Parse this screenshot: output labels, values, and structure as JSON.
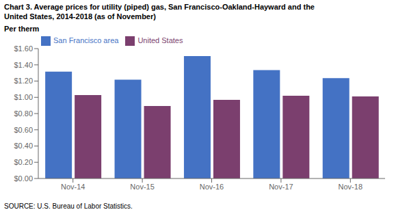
{
  "chart_data": {
    "type": "bar",
    "title": "Chart 3. Average prices for utility (piped) gas, San Francisco-Oakland-Hayward and the",
    "subtitle": "United States, 2014-2018  (as of November)",
    "ylabel": "Per therm",
    "annotations": [
      "SOURCE: U.S. Bureau of Labor Statistics."
    ],
    "categories": [
      "Nov-14",
      "Nov-15",
      "Nov-16",
      "Nov-17",
      "Nov-18"
    ],
    "series": [
      {
        "name": "San Francisco area",
        "color": "#4472C4",
        "values": [
          1.317,
          1.218,
          1.508,
          1.335,
          1.237
        ]
      },
      {
        "name": "United States",
        "color": "#7B3F6E",
        "values": [
          1.028,
          0.894,
          0.969,
          1.02,
          1.012
        ]
      }
    ],
    "ylim": [
      0.0,
      1.6
    ],
    "yticks": [
      {
        "value": 0.0,
        "label": "$0.00"
      },
      {
        "value": 0.2,
        "label": "$0.20"
      },
      {
        "value": 0.4,
        "label": "$0.40"
      },
      {
        "value": 0.6,
        "label": "$0.60"
      },
      {
        "value": 0.8,
        "label": "$0.80"
      },
      {
        "value": 1.0,
        "label": "$1.00"
      },
      {
        "value": 1.2,
        "label": "$1.20"
      },
      {
        "value": 1.4,
        "label": "$1.40"
      },
      {
        "value": 1.6,
        "label": "$1.60"
      }
    ],
    "grid": false,
    "legend": "upper left"
  }
}
